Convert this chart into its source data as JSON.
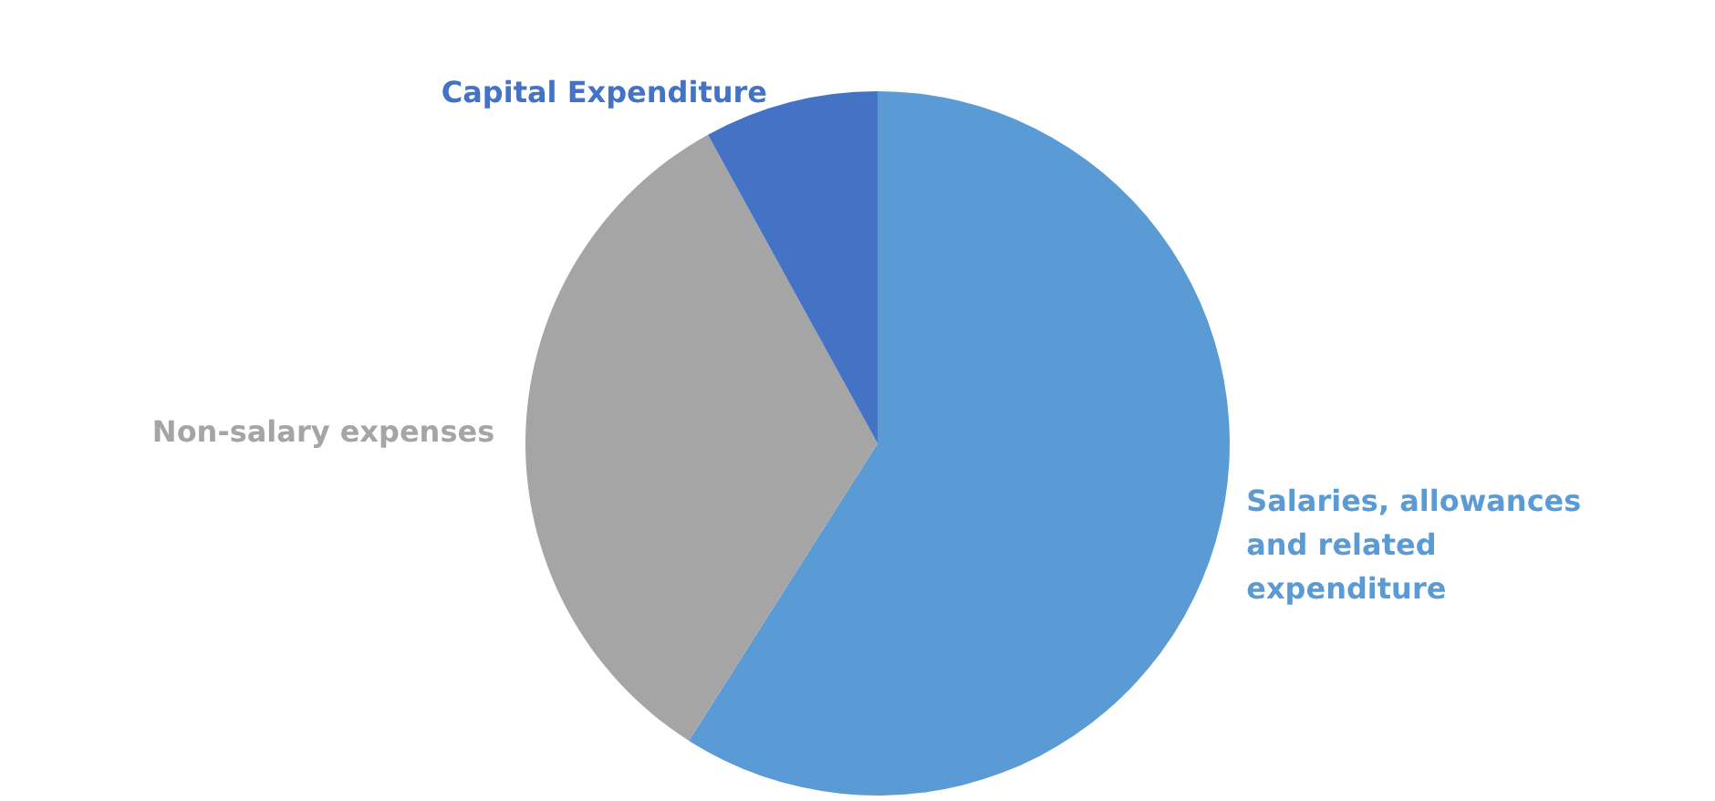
{
  "chart_data": {
    "type": "pie",
    "categories": [
      "Salaries, allowances and related expenditure",
      "Non-salary expenses",
      "Capital Expenditure"
    ],
    "values": [
      59,
      33,
      8
    ],
    "colors": [
      "#5b9bd5",
      "#a5a5a5",
      "#4472c4"
    ],
    "legend": false
  }
}
